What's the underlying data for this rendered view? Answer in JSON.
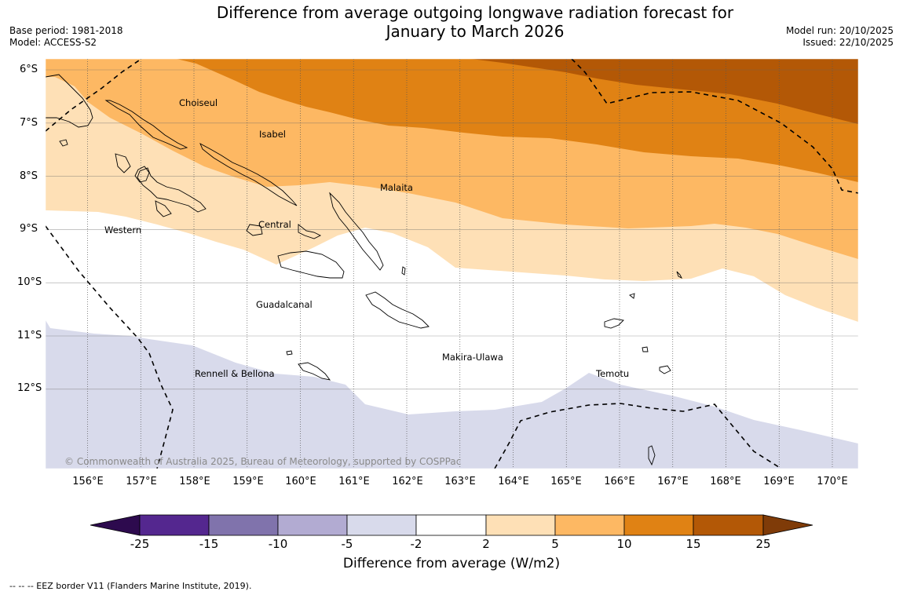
{
  "title": {
    "line1": "Difference from average outgoing longwave radiation forecast for",
    "line2": "January to March 2026"
  },
  "meta_left": {
    "base_period": "Base period: 1981-2018",
    "model": "Model: ACCESS-S2"
  },
  "meta_right": {
    "model_run": "Model run: 20/10/2025",
    "issued": "Issued: 22/10/2025"
  },
  "map": {
    "lat_labels": [
      "6°S",
      "7°S",
      "8°S",
      "9°S",
      "10°S",
      "11°S",
      "12°S"
    ],
    "lon_labels": [
      "156°E",
      "157°E",
      "158°E",
      "159°E",
      "160°E",
      "161°E",
      "162°E",
      "163°E",
      "164°E",
      "165°E",
      "166°E",
      "167°E",
      "168°E",
      "169°E",
      "170°E"
    ],
    "places": {
      "choiseul": "Choiseul",
      "isabel": "Isabel",
      "malaita": "Malaita",
      "central": "Central",
      "western": "Western",
      "guadalcanal": "Guadalcanal",
      "makira_ulawa": "Makira-Ulawa",
      "rennell_bellona": "Rennell & Bellona",
      "temotu": "Temotu"
    },
    "copyright": "© Commonwealth of Australia 2025, Bureau of Meteorology, supported by COSPPac"
  },
  "colorbar": {
    "title": "Difference from average (W/m2)",
    "ticks": [
      "-25",
      "-15",
      "-10",
      "-5",
      "-2",
      "2",
      "5",
      "10",
      "15",
      "25"
    ],
    "colors": {
      "below_-25": "#2d0a4e",
      "-25_to_-15": "#54278f",
      "-15_to_-10": "#8073ac",
      "-10_to_-5": "#b2abd2",
      "-5_to_-2": "#d8daeb",
      "-2_to_2": "#ffffff",
      "2_to_5": "#fee0b6",
      "5_to_10": "#fdb863",
      "10_to_15": "#e08214",
      "15_to_25": "#b35806",
      "above_25": "#7f3b08"
    }
  },
  "footnote": "--  --  -- EEZ border V11 (Flanders Marine Institute, 2019)."
}
